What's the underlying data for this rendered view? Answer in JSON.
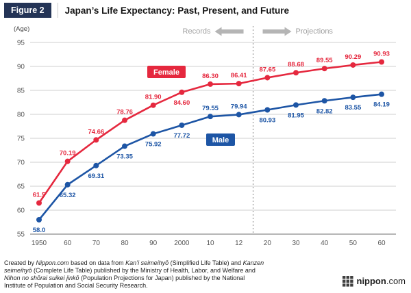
{
  "header": {
    "figure_label": "Figure 2",
    "title": "Japan’s Life Expectancy: Past, Present, and Future"
  },
  "chart_data": {
    "type": "line",
    "title": "Japan’s Life Expectancy: Past, Present, and Future",
    "ylabel": "(Age)",
    "ylim": [
      55,
      95
    ],
    "yticks": [
      55,
      60,
      65,
      70,
      75,
      80,
      85,
      90,
      95
    ],
    "categories": [
      "1950",
      "60",
      "70",
      "80",
      "90",
      "2000",
      "10",
      "12",
      "20",
      "30",
      "40",
      "50",
      "60"
    ],
    "grid": "horizontal",
    "legend_position": "inline-badges",
    "divider": {
      "after_category": "12",
      "records_label": "Records",
      "projections_label": "Projections"
    },
    "series": [
      {
        "name": "Female",
        "color": "#e5283e",
        "values": [
          61.5,
          70.19,
          74.66,
          78.76,
          81.9,
          84.6,
          86.3,
          86.41,
          87.65,
          88.68,
          89.55,
          90.29,
          90.93
        ],
        "labels": [
          "61.5",
          "70.19",
          "74.66",
          "78.76",
          "81.90",
          "84.60",
          "86.30",
          "86.41",
          "87.65",
          "88.68",
          "89.55",
          "90.29",
          "90.93"
        ],
        "label_positions": [
          "above",
          "above",
          "above",
          "above",
          "above",
          "below",
          "above",
          "above",
          "above",
          "above",
          "above",
          "above",
          "above"
        ]
      },
      {
        "name": "Male",
        "color": "#1d55a5",
        "values": [
          58.0,
          65.32,
          69.31,
          73.35,
          75.92,
          77.72,
          79.55,
          79.94,
          80.93,
          81.95,
          82.82,
          83.55,
          84.19
        ],
        "labels": [
          "58.0",
          "65.32",
          "69.31",
          "73.35",
          "75.92",
          "77.72",
          "79.55",
          "79.94",
          "80.93",
          "81.95",
          "82.82",
          "83.55",
          "84.19"
        ],
        "label_positions": [
          "below",
          "below",
          "below",
          "below",
          "below",
          "below",
          "above",
          "above",
          "below",
          "below",
          "below",
          "below",
          "below"
        ]
      }
    ],
    "colors": {
      "grid_line": "#cfcfcf",
      "axis_line": "#8a8a8a",
      "divider_line": "#999999",
      "arrow": "#b5b5b5",
      "header_badge": "#243456"
    }
  },
  "footer": {
    "lines": [
      [
        {
          "t": "Created by ",
          "i": false
        },
        {
          "t": "Nippon.com",
          "i": true
        },
        {
          "t": " based on data from ",
          "i": false
        },
        {
          "t": "Kan’i seimeihyō",
          "i": true
        },
        {
          "t": " (Simplified Life Table) and ",
          "i": false
        },
        {
          "t": "Kanzen",
          "i": true
        }
      ],
      [
        {
          "t": "seimeihyō",
          "i": true
        },
        {
          "t": " (Complete Life Table) published by the Ministry of Health, Labor, and Welfare and",
          "i": false
        }
      ],
      [
        {
          "t": "Nihon no shōrai suikei jinkō",
          "i": true
        },
        {
          "t": " (Population Projections for Japan) published by the National",
          "i": false
        }
      ],
      [
        {
          "t": "Institute of Population and Social Security Research.",
          "i": false
        }
      ]
    ]
  },
  "logo": {
    "name": "nippon",
    "domain": ".com"
  }
}
